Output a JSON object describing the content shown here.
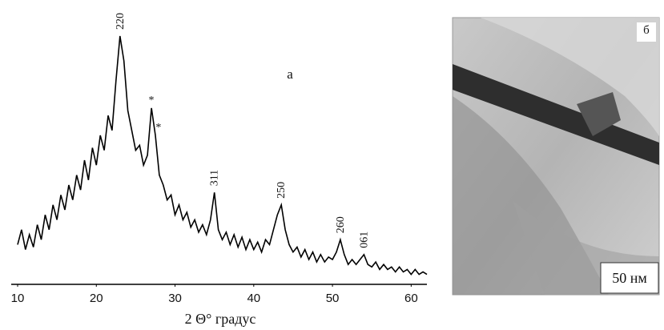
{
  "chart_data": {
    "type": "line",
    "x_label": "2 Θ° градус",
    "panel_label": "а",
    "image_label": "б",
    "scale_bar": "50 нм",
    "xlim": [
      10,
      62
    ],
    "xticks": [
      10,
      20,
      30,
      40,
      50,
      60
    ],
    "ylim": [
      0,
      100
    ],
    "color": "#000000",
    "x": [
      10,
      10.5,
      11,
      11.5,
      12,
      12.5,
      13,
      13.5,
      14,
      14.5,
      15,
      15.5,
      16,
      16.5,
      17,
      17.5,
      18,
      18.5,
      19,
      19.5,
      20,
      20.5,
      21,
      21.5,
      22,
      22.5,
      23,
      23.5,
      24,
      24.5,
      25,
      25.5,
      26,
      26.5,
      27,
      27.5,
      28,
      28.5,
      29,
      29.5,
      30,
      30.5,
      31,
      31.5,
      32,
      32.5,
      33,
      33.5,
      34,
      34.5,
      35,
      35.5,
      36,
      36.5,
      37,
      37.5,
      38,
      38.5,
      39,
      39.5,
      40,
      40.5,
      41,
      41.5,
      42,
      42.5,
      43,
      43.5,
      44,
      44.5,
      45,
      45.5,
      46,
      46.5,
      47,
      47.5,
      48,
      48.5,
      49,
      49.5,
      50,
      50.5,
      51,
      51.5,
      52,
      52.5,
      53,
      53.5,
      54,
      54.5,
      55,
      55.5,
      56,
      56.5,
      57,
      57.5,
      58,
      58.5,
      59,
      59.5,
      60,
      60.5,
      61,
      61.5,
      62
    ],
    "values": [
      16,
      22,
      14,
      20,
      15,
      24,
      18,
      28,
      22,
      32,
      26,
      36,
      30,
      40,
      34,
      44,
      38,
      50,
      42,
      55,
      48,
      60,
      54,
      68,
      62,
      82,
      100,
      90,
      70,
      62,
      54,
      56,
      48,
      52,
      71,
      60,
      44,
      40,
      34,
      36,
      28,
      32,
      26,
      29,
      23,
      26,
      21,
      24,
      20,
      26,
      37,
      22,
      18,
      21,
      16,
      20,
      15,
      19,
      14,
      18,
      14,
      17,
      13,
      18,
      16,
      22,
      28,
      32,
      22,
      16,
      13,
      15,
      11,
      14,
      10,
      13,
      9,
      12,
      9,
      11,
      10,
      13,
      18,
      12,
      8,
      10,
      8,
      10,
      12,
      8,
      7,
      9,
      6,
      8,
      6,
      7,
      5,
      7,
      5,
      6,
      4,
      6,
      4,
      5,
      4
    ],
    "annotations": [
      {
        "text": "220",
        "x": 23
      },
      {
        "text": "*",
        "x": 27
      },
      {
        "text": "*",
        "x": 27.9
      },
      {
        "text": "311",
        "x": 35
      },
      {
        "text": "250",
        "x": 43.5
      },
      {
        "text": "260",
        "x": 51
      },
      {
        "text": "061",
        "x": 54
      }
    ]
  }
}
